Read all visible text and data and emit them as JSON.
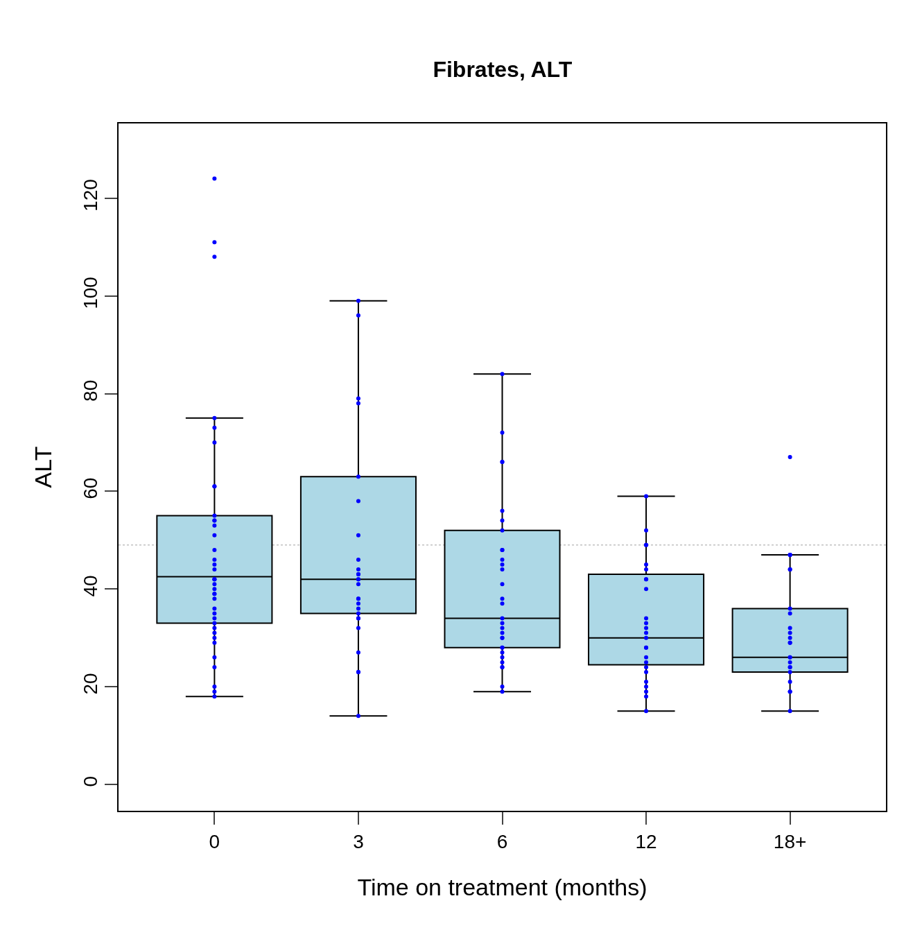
{
  "chart_data": {
    "type": "box",
    "title": "Fibrates, ALT",
    "xlabel": "Time on treatment (months)",
    "ylabel": "ALT",
    "categories": [
      "0",
      "3",
      "6",
      "12",
      "18+"
    ],
    "series": [
      {
        "color": "#add8e6",
        "boxes": [
          {
            "low": 18,
            "q1": 33,
            "median": 42.5,
            "q3": 55,
            "high": 75
          },
          {
            "low": 14,
            "q1": 35,
            "median": 42,
            "q3": 63,
            "high": 99
          },
          {
            "low": 19,
            "q1": 28,
            "median": 34,
            "q3": 52,
            "high": 84
          },
          {
            "low": 15,
            "q1": 24.5,
            "median": 30,
            "q3": 43,
            "high": 59
          },
          {
            "low": 15,
            "q1": 23,
            "median": 26,
            "q3": 36,
            "high": 47
          }
        ]
      },
      {
        "type": "scatter",
        "color": "#0000ff",
        "marker": "circle",
        "x": [
          "0",
          "0",
          "0",
          "0",
          "0",
          "0",
          "0",
          "0",
          "0",
          "0",
          "0",
          "0",
          "0",
          "0",
          "0",
          "0",
          "0",
          "0",
          "0",
          "0",
          "0",
          "0",
          "0",
          "0",
          "0",
          "0",
          "0",
          "0",
          "0",
          "0",
          "0",
          "0",
          "0",
          "0",
          "0",
          "0",
          "0",
          "0",
          "3",
          "3",
          "3",
          "3",
          "3",
          "3",
          "3",
          "3",
          "3",
          "3",
          "3",
          "3",
          "3",
          "3",
          "3",
          "3",
          "3",
          "3",
          "3",
          "3",
          "3",
          "3",
          "3",
          "3",
          "3",
          "3",
          "6",
          "6",
          "6",
          "6",
          "6",
          "6",
          "6",
          "6",
          "6",
          "6",
          "6",
          "6",
          "6",
          "6",
          "6",
          "6",
          "6",
          "6",
          "6",
          "6",
          "6",
          "6",
          "6",
          "6",
          "6",
          "6",
          "6",
          "6",
          "6",
          "6",
          "12",
          "12",
          "12",
          "12",
          "12",
          "12",
          "12",
          "12",
          "12",
          "12",
          "12",
          "12",
          "12",
          "12",
          "12",
          "12",
          "12",
          "12",
          "12",
          "12",
          "12",
          "12",
          "12",
          "12",
          "12",
          "18+",
          "18+",
          "18+",
          "18+",
          "18+",
          "18+",
          "18+",
          "18+",
          "18+",
          "18+",
          "18+",
          "18+",
          "18+",
          "18+",
          "18+",
          "18+",
          "18+",
          "18+",
          "18+",
          "18+",
          "18+",
          "18+",
          "18+"
        ],
        "values": [
          124,
          111,
          108,
          75,
          73,
          70,
          61,
          61,
          55,
          54,
          54,
          53,
          51,
          48,
          46,
          45,
          44,
          42,
          42,
          42,
          41,
          40,
          39,
          39,
          38,
          36,
          35,
          34,
          33,
          32,
          31,
          30,
          29,
          26,
          24,
          20,
          19,
          18,
          99,
          96,
          79,
          78,
          63,
          58,
          51,
          46,
          44,
          43,
          43,
          42,
          42,
          41,
          38,
          38,
          37,
          36,
          35,
          34,
          34,
          32,
          27,
          23,
          23,
          14,
          84,
          72,
          66,
          66,
          56,
          54,
          52,
          48,
          48,
          46,
          45,
          44,
          41,
          38,
          37,
          34,
          33,
          32,
          31,
          30,
          30,
          28,
          28,
          27,
          26,
          25,
          24,
          24,
          20,
          19,
          59,
          52,
          49,
          49,
          45,
          44,
          42,
          42,
          40,
          34,
          33,
          32,
          31,
          30,
          28,
          28,
          26,
          25,
          24,
          23,
          21,
          20,
          19,
          18,
          15,
          67,
          47,
          47,
          47,
          44,
          44,
          36,
          35,
          32,
          31,
          30,
          29,
          29,
          26,
          26,
          25,
          24,
          24,
          23,
          21,
          19,
          19,
          15
        ]
      }
    ],
    "ref_lines": [
      {
        "axis": "y",
        "value": 49,
        "color": "#c0c0c0",
        "line_style": "dotted"
      }
    ],
    "ylim": [
      -5.4,
      135.3
    ],
    "yticks": [
      0,
      20,
      40,
      60,
      80,
      100,
      120
    ],
    "grid": false
  }
}
